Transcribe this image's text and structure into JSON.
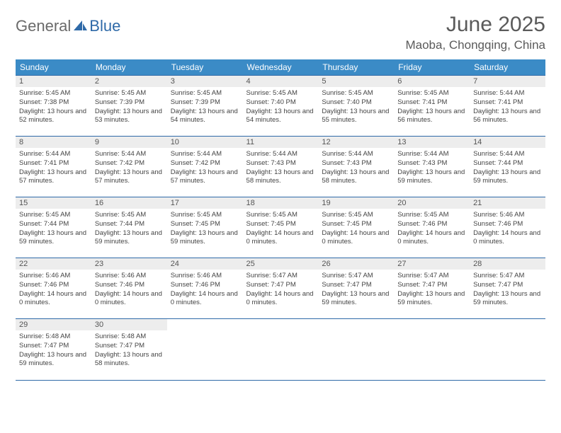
{
  "header": {
    "logo_part1": "General",
    "logo_part2": "Blue",
    "month_title": "June 2025",
    "location": "Maoba, Chongqing, China"
  },
  "styling": {
    "header_bg": "#3b8bc6",
    "header_text": "#ffffff",
    "daynum_bg": "#ededed",
    "border_color": "#2f6aa8",
    "body_text": "#444444",
    "logo_gray": "#6a6a6a",
    "logo_blue": "#2f6aa8",
    "page_bg": "#ffffff"
  },
  "weekdays": [
    "Sunday",
    "Monday",
    "Tuesday",
    "Wednesday",
    "Thursday",
    "Friday",
    "Saturday"
  ],
  "days": [
    {
      "n": "1",
      "sr": "5:45 AM",
      "ss": "7:38 PM",
      "dl": "13 hours and 52 minutes."
    },
    {
      "n": "2",
      "sr": "5:45 AM",
      "ss": "7:39 PM",
      "dl": "13 hours and 53 minutes."
    },
    {
      "n": "3",
      "sr": "5:45 AM",
      "ss": "7:39 PM",
      "dl": "13 hours and 54 minutes."
    },
    {
      "n": "4",
      "sr": "5:45 AM",
      "ss": "7:40 PM",
      "dl": "13 hours and 54 minutes."
    },
    {
      "n": "5",
      "sr": "5:45 AM",
      "ss": "7:40 PM",
      "dl": "13 hours and 55 minutes."
    },
    {
      "n": "6",
      "sr": "5:45 AM",
      "ss": "7:41 PM",
      "dl": "13 hours and 56 minutes."
    },
    {
      "n": "7",
      "sr": "5:44 AM",
      "ss": "7:41 PM",
      "dl": "13 hours and 56 minutes."
    },
    {
      "n": "8",
      "sr": "5:44 AM",
      "ss": "7:41 PM",
      "dl": "13 hours and 57 minutes."
    },
    {
      "n": "9",
      "sr": "5:44 AM",
      "ss": "7:42 PM",
      "dl": "13 hours and 57 minutes."
    },
    {
      "n": "10",
      "sr": "5:44 AM",
      "ss": "7:42 PM",
      "dl": "13 hours and 57 minutes."
    },
    {
      "n": "11",
      "sr": "5:44 AM",
      "ss": "7:43 PM",
      "dl": "13 hours and 58 minutes."
    },
    {
      "n": "12",
      "sr": "5:44 AM",
      "ss": "7:43 PM",
      "dl": "13 hours and 58 minutes."
    },
    {
      "n": "13",
      "sr": "5:44 AM",
      "ss": "7:43 PM",
      "dl": "13 hours and 59 minutes."
    },
    {
      "n": "14",
      "sr": "5:44 AM",
      "ss": "7:44 PM",
      "dl": "13 hours and 59 minutes."
    },
    {
      "n": "15",
      "sr": "5:45 AM",
      "ss": "7:44 PM",
      "dl": "13 hours and 59 minutes."
    },
    {
      "n": "16",
      "sr": "5:45 AM",
      "ss": "7:44 PM",
      "dl": "13 hours and 59 minutes."
    },
    {
      "n": "17",
      "sr": "5:45 AM",
      "ss": "7:45 PM",
      "dl": "13 hours and 59 minutes."
    },
    {
      "n": "18",
      "sr": "5:45 AM",
      "ss": "7:45 PM",
      "dl": "14 hours and 0 minutes."
    },
    {
      "n": "19",
      "sr": "5:45 AM",
      "ss": "7:45 PM",
      "dl": "14 hours and 0 minutes."
    },
    {
      "n": "20",
      "sr": "5:45 AM",
      "ss": "7:46 PM",
      "dl": "14 hours and 0 minutes."
    },
    {
      "n": "21",
      "sr": "5:46 AM",
      "ss": "7:46 PM",
      "dl": "14 hours and 0 minutes."
    },
    {
      "n": "22",
      "sr": "5:46 AM",
      "ss": "7:46 PM",
      "dl": "14 hours and 0 minutes."
    },
    {
      "n": "23",
      "sr": "5:46 AM",
      "ss": "7:46 PM",
      "dl": "14 hours and 0 minutes."
    },
    {
      "n": "24",
      "sr": "5:46 AM",
      "ss": "7:46 PM",
      "dl": "14 hours and 0 minutes."
    },
    {
      "n": "25",
      "sr": "5:47 AM",
      "ss": "7:47 PM",
      "dl": "14 hours and 0 minutes."
    },
    {
      "n": "26",
      "sr": "5:47 AM",
      "ss": "7:47 PM",
      "dl": "13 hours and 59 minutes."
    },
    {
      "n": "27",
      "sr": "5:47 AM",
      "ss": "7:47 PM",
      "dl": "13 hours and 59 minutes."
    },
    {
      "n": "28",
      "sr": "5:47 AM",
      "ss": "7:47 PM",
      "dl": "13 hours and 59 minutes."
    },
    {
      "n": "29",
      "sr": "5:48 AM",
      "ss": "7:47 PM",
      "dl": "13 hours and 59 minutes."
    },
    {
      "n": "30",
      "sr": "5:48 AM",
      "ss": "7:47 PM",
      "dl": "13 hours and 58 minutes."
    }
  ],
  "labels": {
    "sunrise": "Sunrise:",
    "sunset": "Sunset:",
    "daylight": "Daylight:"
  },
  "layout": {
    "start_weekday": 0,
    "num_days": 30,
    "cols": 7
  }
}
